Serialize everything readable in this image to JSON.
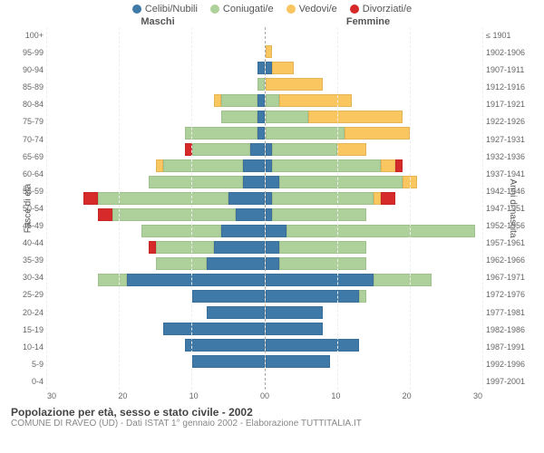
{
  "title": "Popolazione per età, sesso e stato civile - 2002",
  "subtitle": "COMUNE DI RAVEO (UD) - Dati ISTAT 1° gennaio 2002 - Elaborazione TUTTITALIA.IT",
  "legend": [
    {
      "label": "Celibi/Nubili",
      "color": "#3e79a7"
    },
    {
      "label": "Coniugati/e",
      "color": "#aed09a"
    },
    {
      "label": "Vedovi/e",
      "color": "#f9c65f"
    },
    {
      "label": "Divorziati/e",
      "color": "#d62a2a"
    }
  ],
  "header_male": "Maschi",
  "header_female": "Femmine",
  "ylabel_left": "Fasce di età",
  "ylabel_right": "Anni di nascita",
  "xmax": 30,
  "xticks_male": [
    30,
    20,
    10,
    0
  ],
  "xticks_female": [
    0,
    10,
    20,
    30
  ],
  "colors": {
    "single": "#3e79a7",
    "married": "#aed09a",
    "widowed": "#f9c65f",
    "divorced": "#d62a2a",
    "grid": "#eeeeee",
    "border": "#cccccc"
  },
  "rows": [
    {
      "age": "100+",
      "birth": "≤ 1901",
      "m": {
        "s": 0,
        "m": 0,
        "w": 0,
        "d": 0
      },
      "f": {
        "s": 0,
        "m": 0,
        "w": 0,
        "d": 0
      }
    },
    {
      "age": "95-99",
      "birth": "1902-1906",
      "m": {
        "s": 0,
        "m": 0,
        "w": 0,
        "d": 0
      },
      "f": {
        "s": 0,
        "m": 0,
        "w": 1,
        "d": 0
      }
    },
    {
      "age": "90-94",
      "birth": "1907-1911",
      "m": {
        "s": 1,
        "m": 0,
        "w": 0,
        "d": 0
      },
      "f": {
        "s": 1,
        "m": 0,
        "w": 3,
        "d": 0
      }
    },
    {
      "age": "85-89",
      "birth": "1912-1916",
      "m": {
        "s": 0,
        "m": 1,
        "w": 0,
        "d": 0
      },
      "f": {
        "s": 0,
        "m": 0,
        "w": 8,
        "d": 0
      }
    },
    {
      "age": "80-84",
      "birth": "1917-1921",
      "m": {
        "s": 1,
        "m": 5,
        "w": 1,
        "d": 0
      },
      "f": {
        "s": 0,
        "m": 2,
        "w": 10,
        "d": 0
      }
    },
    {
      "age": "75-79",
      "birth": "1922-1926",
      "m": {
        "s": 1,
        "m": 5,
        "w": 0,
        "d": 0
      },
      "f": {
        "s": 0,
        "m": 6,
        "w": 13,
        "d": 0
      }
    },
    {
      "age": "70-74",
      "birth": "1927-1931",
      "m": {
        "s": 1,
        "m": 10,
        "w": 0,
        "d": 0
      },
      "f": {
        "s": 0,
        "m": 11,
        "w": 9,
        "d": 0
      }
    },
    {
      "age": "65-69",
      "birth": "1932-1936",
      "m": {
        "s": 2,
        "m": 8,
        "w": 0,
        "d": 1
      },
      "f": {
        "s": 1,
        "m": 9,
        "w": 4,
        "d": 0
      }
    },
    {
      "age": "60-64",
      "birth": "1937-1941",
      "m": {
        "s": 3,
        "m": 11,
        "w": 1,
        "d": 0
      },
      "f": {
        "s": 1,
        "m": 15,
        "w": 2,
        "d": 1
      }
    },
    {
      "age": "55-59",
      "birth": "1942-1946",
      "m": {
        "s": 3,
        "m": 13,
        "w": 0,
        "d": 0
      },
      "f": {
        "s": 2,
        "m": 17,
        "w": 2,
        "d": 0
      }
    },
    {
      "age": "50-54",
      "birth": "1947-1951",
      "m": {
        "s": 5,
        "m": 18,
        "w": 0,
        "d": 2
      },
      "f": {
        "s": 1,
        "m": 14,
        "w": 1,
        "d": 2
      }
    },
    {
      "age": "45-49",
      "birth": "1952-1956",
      "m": {
        "s": 4,
        "m": 17,
        "w": 0,
        "d": 2
      },
      "f": {
        "s": 1,
        "m": 13,
        "w": 0,
        "d": 0
      }
    },
    {
      "age": "40-44",
      "birth": "1957-1961",
      "m": {
        "s": 6,
        "m": 11,
        "w": 0,
        "d": 0
      },
      "f": {
        "s": 3,
        "m": 26,
        "w": 0,
        "d": 0
      }
    },
    {
      "age": "35-39",
      "birth": "1962-1966",
      "m": {
        "s": 7,
        "m": 8,
        "w": 0,
        "d": 1
      },
      "f": {
        "s": 2,
        "m": 12,
        "w": 0,
        "d": 0
      }
    },
    {
      "age": "30-34",
      "birth": "1967-1971",
      "m": {
        "s": 8,
        "m": 7,
        "w": 0,
        "d": 0
      },
      "f": {
        "s": 2,
        "m": 12,
        "w": 0,
        "d": 0
      }
    },
    {
      "age": "25-29",
      "birth": "1972-1976",
      "m": {
        "s": 19,
        "m": 4,
        "w": 0,
        "d": 0
      },
      "f": {
        "s": 15,
        "m": 8,
        "w": 0,
        "d": 0
      }
    },
    {
      "age": "20-24",
      "birth": "1977-1981",
      "m": {
        "s": 10,
        "m": 0,
        "w": 0,
        "d": 0
      },
      "f": {
        "s": 13,
        "m": 1,
        "w": 0,
        "d": 0
      }
    },
    {
      "age": "15-19",
      "birth": "1982-1986",
      "m": {
        "s": 8,
        "m": 0,
        "w": 0,
        "d": 0
      },
      "f": {
        "s": 8,
        "m": 0,
        "w": 0,
        "d": 0
      }
    },
    {
      "age": "10-14",
      "birth": "1987-1991",
      "m": {
        "s": 14,
        "m": 0,
        "w": 0,
        "d": 0
      },
      "f": {
        "s": 8,
        "m": 0,
        "w": 0,
        "d": 0
      }
    },
    {
      "age": "5-9",
      "birth": "1992-1996",
      "m": {
        "s": 11,
        "m": 0,
        "w": 0,
        "d": 0
      },
      "f": {
        "s": 13,
        "m": 0,
        "w": 0,
        "d": 0
      }
    },
    {
      "age": "0-4",
      "birth": "1997-2001",
      "m": {
        "s": 10,
        "m": 0,
        "w": 0,
        "d": 0
      },
      "f": {
        "s": 9,
        "m": 0,
        "w": 0,
        "d": 0
      }
    }
  ]
}
